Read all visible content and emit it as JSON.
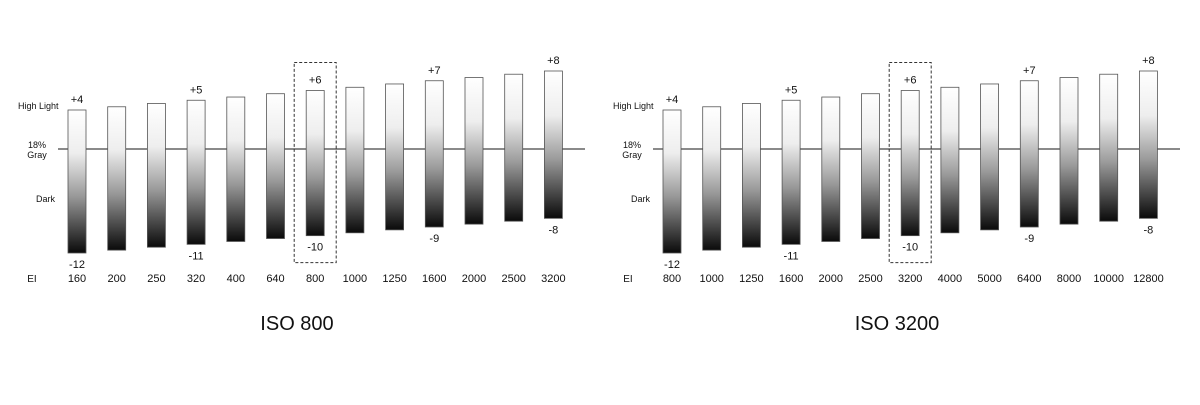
{
  "chart_data": [
    {
      "type": "bar",
      "title": "ISO 800",
      "axis_label": "EI",
      "row_labels": {
        "high": "High Light",
        "mid": "18%\nGray",
        "dark": "Dark"
      },
      "categories": [
        "160",
        "200",
        "250",
        "320",
        "400",
        "640",
        "800",
        "1000",
        "1250",
        "1600",
        "2000",
        "2500",
        "3200"
      ],
      "highlight_values": [
        4,
        4.33,
        4.67,
        5,
        5.33,
        5.67,
        6,
        6.33,
        6.67,
        7,
        7.33,
        7.67,
        8
      ],
      "dark_values": [
        -12,
        -11.67,
        -11.33,
        -11,
        -10.67,
        -10.33,
        -10,
        -9.67,
        -9.33,
        -9,
        -8.67,
        -8.33,
        -8
      ],
      "top_labels": [
        "+4",
        "",
        "",
        "+5",
        "",
        "",
        "+6",
        "",
        "",
        "+7",
        "",
        "",
        "+8"
      ],
      "bottom_labels": [
        "-12",
        "",
        "",
        "-11",
        "",
        "",
        "-10",
        "",
        "",
        "-9",
        "",
        "",
        "-8"
      ],
      "highlighted_category": "800",
      "ylim": [
        -12,
        8
      ]
    },
    {
      "type": "bar",
      "title": "ISO 3200",
      "axis_label": "EI",
      "row_labels": {
        "high": "High Light",
        "mid": "18%\nGray",
        "dark": "Dark"
      },
      "categories": [
        "800",
        "1000",
        "1250",
        "1600",
        "2000",
        "2500",
        "3200",
        "4000",
        "5000",
        "6400",
        "8000",
        "10000",
        "12800"
      ],
      "highlight_values": [
        4,
        4.33,
        4.67,
        5,
        5.33,
        5.67,
        6,
        6.33,
        6.67,
        7,
        7.33,
        7.67,
        8
      ],
      "dark_values": [
        -12,
        -11.67,
        -11.33,
        -11,
        -10.67,
        -10.33,
        -10,
        -9.67,
        -9.33,
        -9,
        -8.67,
        -8.33,
        -8
      ],
      "top_labels": [
        "+4",
        "",
        "",
        "+5",
        "",
        "",
        "+6",
        "",
        "",
        "+7",
        "",
        "",
        "+8"
      ],
      "bottom_labels": [
        "-12",
        "",
        "",
        "-11",
        "",
        "",
        "-10",
        "",
        "",
        "-9",
        "",
        "",
        "-8"
      ],
      "highlighted_category": "3200",
      "ylim": [
        -12,
        8
      ]
    }
  ]
}
